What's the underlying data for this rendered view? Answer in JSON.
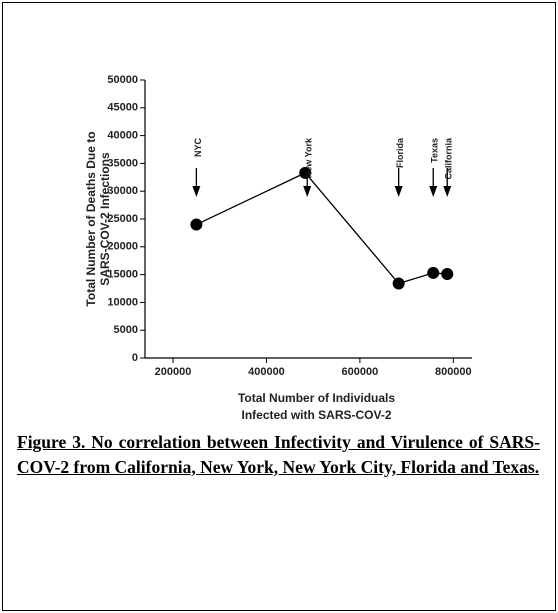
{
  "chart_data": {
    "type": "line",
    "ylabel": [
      "Total Number of Deaths Due to",
      "SARS-COV-2 Infections"
    ],
    "xlabel": [
      "Total Number of Individuals",
      "Infected with SARS-COV-2"
    ],
    "x": [
      250000,
      483000,
      683000,
      757000,
      787000
    ],
    "series": [
      {
        "color": "#000000",
        "values": [
          24000,
          33300,
          13400,
          15300,
          15100
        ]
      }
    ],
    "annotations": [
      "NYC",
      "New York",
      "Florida",
      "Texas",
      "California"
    ],
    "xlim": [
      140000,
      840000
    ],
    "xticks": [
      200000,
      400000,
      600000,
      800000
    ],
    "ylim": [
      0,
      50000
    ],
    "yticks": [
      0,
      5000,
      10000,
      15000,
      20000,
      25000,
      30000,
      35000,
      40000,
      45000,
      50000
    ],
    "grid": false,
    "caption": "Figure 3. No correlation between Infectivity and Virulence of SARS-COV-2 from California, New York, New York City, Florida and Texas."
  }
}
